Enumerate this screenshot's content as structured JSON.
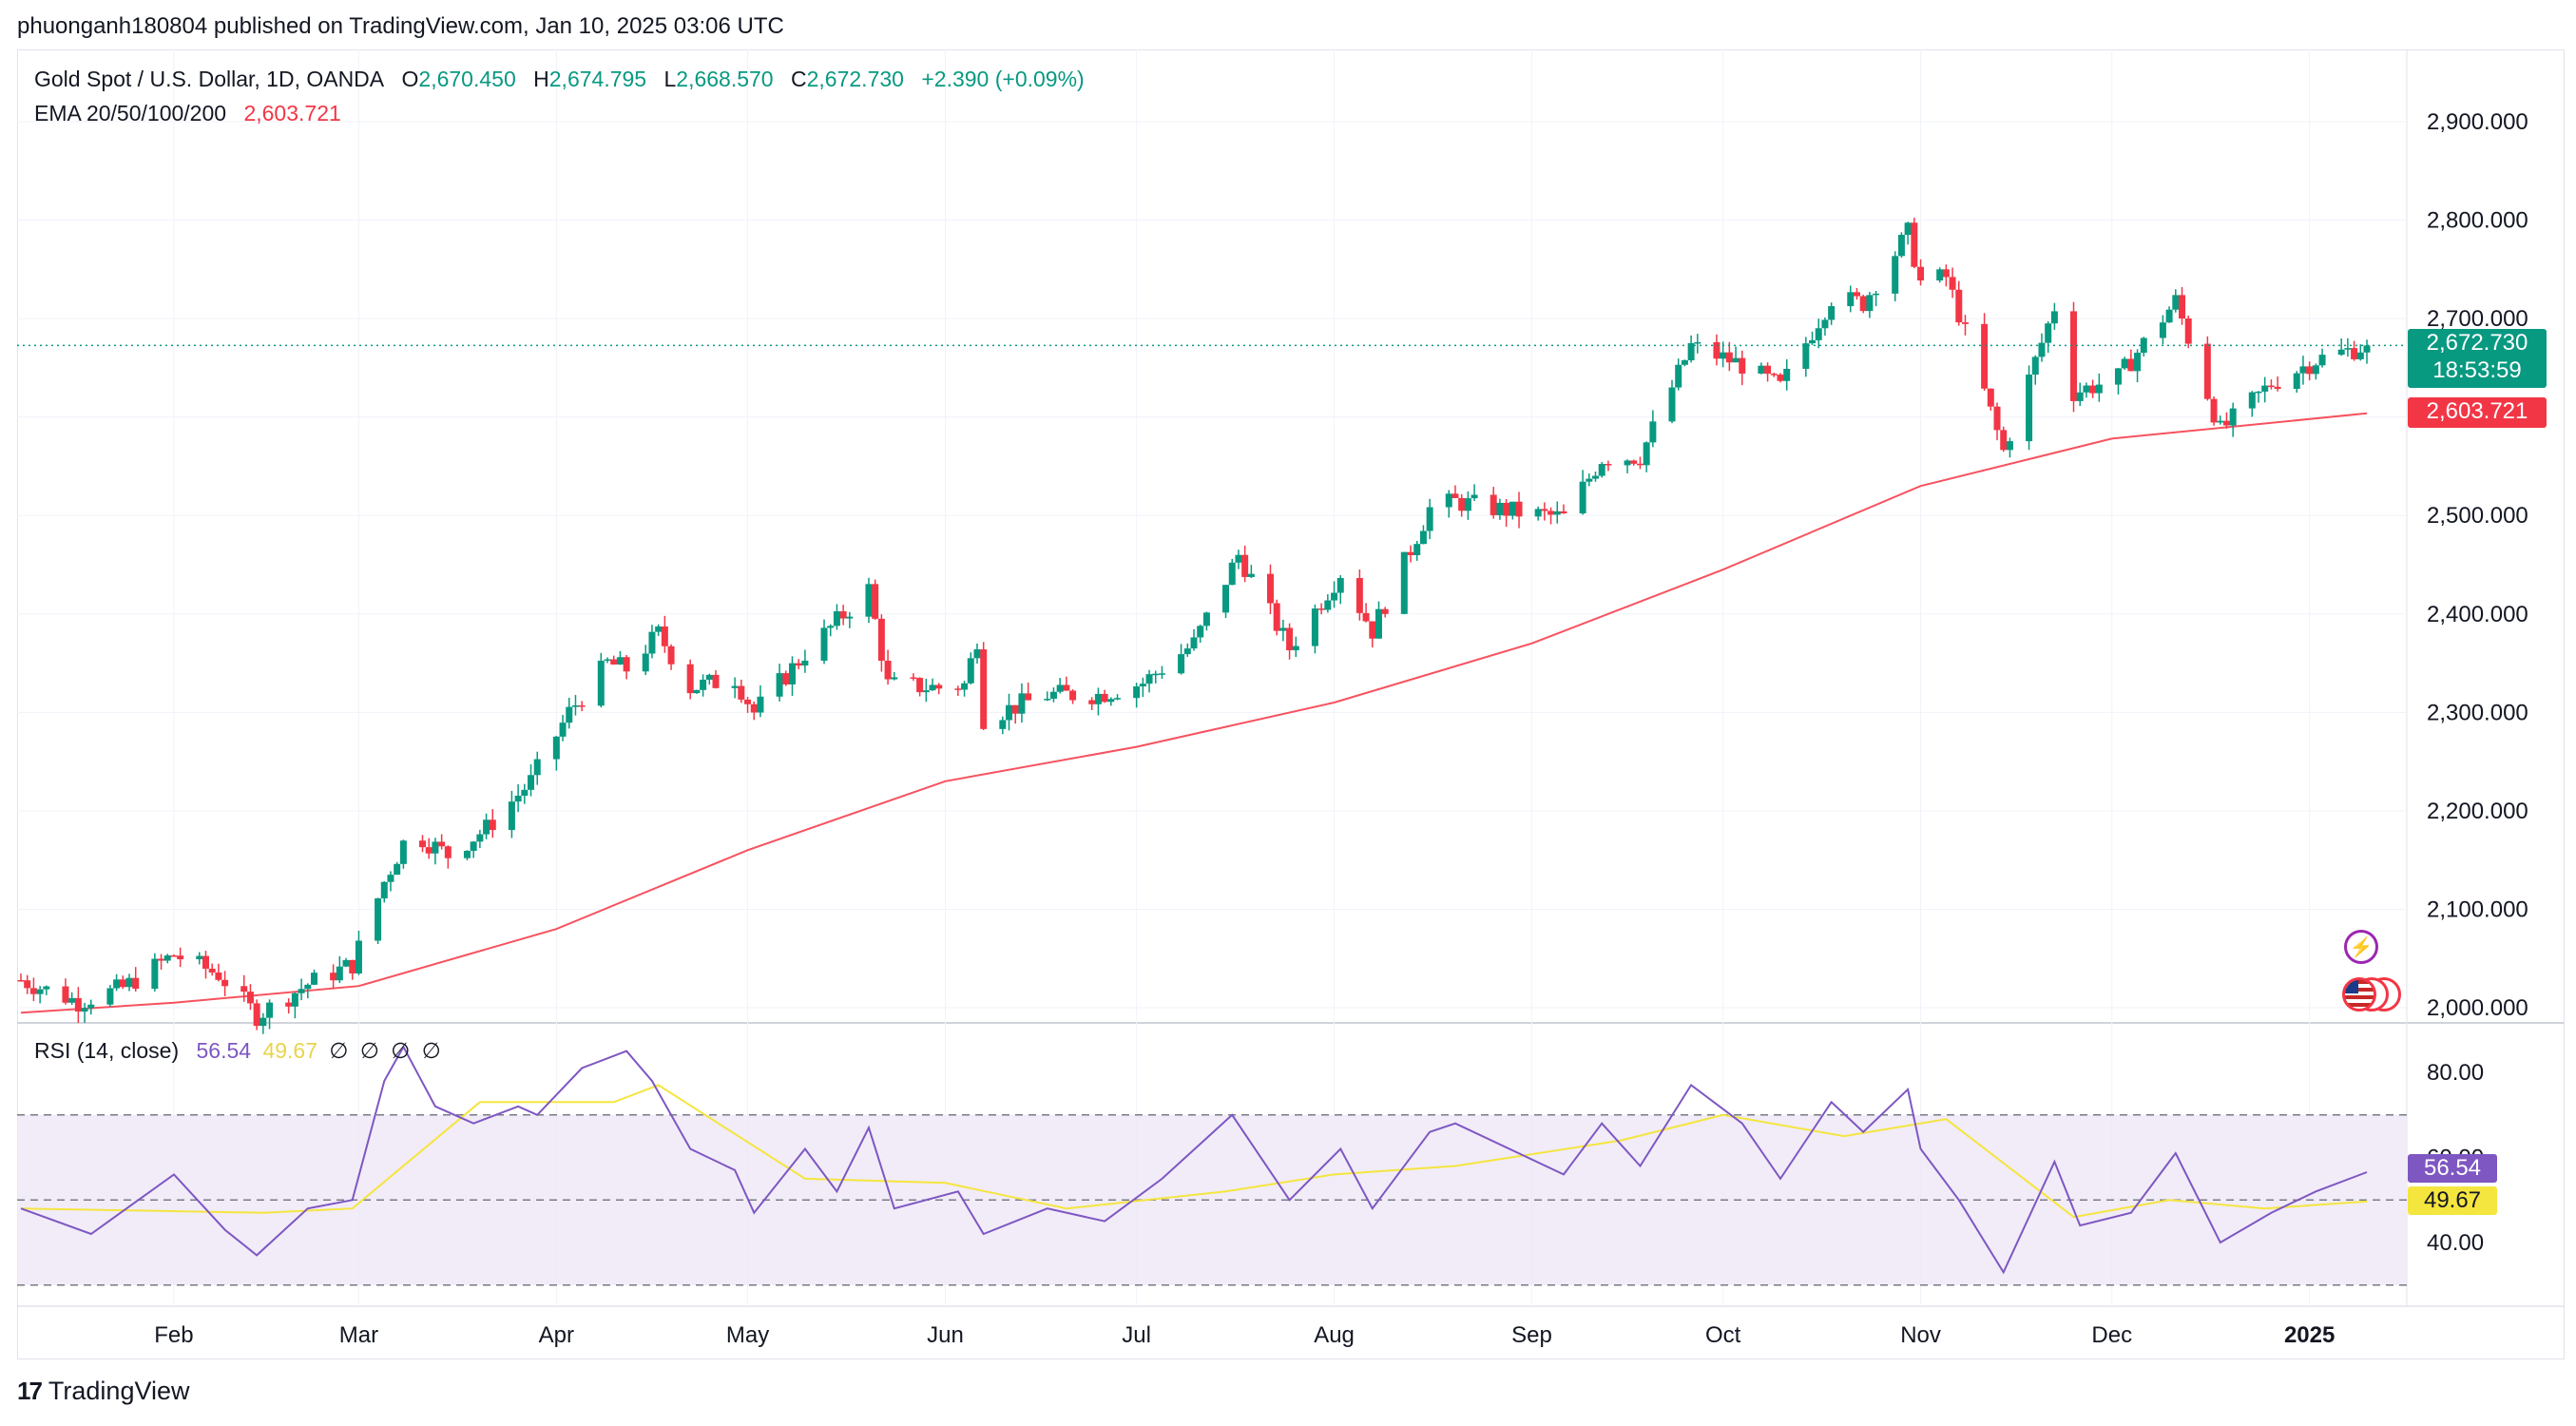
{
  "publisher": {
    "text": "phuonganh180804 published on TradingView.com, Jan 10, 2025 03:06 UTC"
  },
  "legend": {
    "symbol": "Gold Spot / U.S. Dollar, 1D, OANDA",
    "o_label": "O",
    "o": "2,670.450",
    "h_label": "H",
    "h": "2,674.795",
    "l_label": "L",
    "l": "2,668.570",
    "c_label": "C",
    "c": "2,672.730",
    "change": "+2.390 (+0.09%)",
    "ema_label": "EMA 20/50/100/200",
    "ema_value": "2,603.721",
    "rsi_label": "RSI (14, close)",
    "rsi_value": "56.54",
    "rsi_ma_value": "49.67",
    "rsi_na": [
      "∅",
      "∅",
      "∅",
      "∅"
    ]
  },
  "badges": {
    "price": "2,672.730",
    "countdown": "18:53:59",
    "ema": "2,603.721",
    "rsi": "56.54",
    "rsi_ma": "49.67"
  },
  "colors": {
    "up": "#089981",
    "down": "#f23645",
    "ema": "#f7525f",
    "rsi": "#7e57c2",
    "rsi_ma": "#f5e53f",
    "rsi_band": "#ede7f6"
  },
  "branding": {
    "name": "TradingView",
    "logo_icon": "tradingview-logo-icon"
  },
  "icons": [
    "lightning-event-icon",
    "us-flag-events-icon"
  ],
  "chart_data": [
    {
      "type": "candlestick",
      "title": "Gold Spot / U.S. Dollar, 1D, OANDA",
      "x_range": [
        "2024-01-08",
        "2025-01-10"
      ],
      "ylim": [
        1990,
        2950
      ],
      "y_ticks": [
        "2,000.000",
        "2,100.000",
        "2,200.000",
        "2,300.000",
        "2,400.000",
        "2,500.000",
        "2,600.000",
        "2,700.000",
        "2,800.000",
        "2,900.000"
      ],
      "x_ticks": [
        "Feb",
        "Mar",
        "Apr",
        "May",
        "Jun",
        "Jul",
        "Aug",
        "Sep",
        "Oct",
        "Nov",
        "Dec",
        "2025"
      ],
      "current_price": 2672.73,
      "close_series": [
        {
          "date": "2024-01-08",
          "value": 2028
        },
        {
          "date": "2024-01-17",
          "value": 2006
        },
        {
          "date": "2024-01-24",
          "value": 2020
        },
        {
          "date": "2024-02-01",
          "value": 2054
        },
        {
          "date": "2024-02-08",
          "value": 2034
        },
        {
          "date": "2024-02-14",
          "value": 1992
        },
        {
          "date": "2024-02-22",
          "value": 2024
        },
        {
          "date": "2024-02-29",
          "value": 2044
        },
        {
          "date": "2024-03-05",
          "value": 2128
        },
        {
          "date": "2024-03-09",
          "value": 2180
        },
        {
          "date": "2024-03-15",
          "value": 2155
        },
        {
          "date": "2024-03-21",
          "value": 2182
        },
        {
          "date": "2024-03-28",
          "value": 2230
        },
        {
          "date": "2024-04-03",
          "value": 2300
        },
        {
          "date": "2024-04-09",
          "value": 2350
        },
        {
          "date": "2024-04-12",
          "value": 2344
        },
        {
          "date": "2024-04-17",
          "value": 2380
        },
        {
          "date": "2024-04-22",
          "value": 2325
        },
        {
          "date": "2024-04-29",
          "value": 2335
        },
        {
          "date": "2024-05-02",
          "value": 2300
        },
        {
          "date": "2024-05-10",
          "value": 2360
        },
        {
          "date": "2024-05-20",
          "value": 2425
        },
        {
          "date": "2024-05-23",
          "value": 2328
        },
        {
          "date": "2024-05-31",
          "value": 2325
        },
        {
          "date": "2024-06-04",
          "value": 2328
        },
        {
          "date": "2024-06-06",
          "value": 2375
        },
        {
          "date": "2024-06-07",
          "value": 2294
        },
        {
          "date": "2024-06-17",
          "value": 2318
        },
        {
          "date": "2024-06-25",
          "value": 2318
        },
        {
          "date": "2024-07-02",
          "value": 2330
        },
        {
          "date": "2024-07-10",
          "value": 2370
        },
        {
          "date": "2024-07-17",
          "value": 2460
        },
        {
          "date": "2024-07-25",
          "value": 2365
        },
        {
          "date": "2024-08-02",
          "value": 2442
        },
        {
          "date": "2024-08-07",
          "value": 2383
        },
        {
          "date": "2024-08-16",
          "value": 2507
        },
        {
          "date": "2024-08-20",
          "value": 2514
        },
        {
          "date": "2024-08-30",
          "value": 2503
        },
        {
          "date": "2024-09-06",
          "value": 2498
        },
        {
          "date": "2024-09-12",
          "value": 2558
        },
        {
          "date": "2024-09-18",
          "value": 2560
        },
        {
          "date": "2024-09-26",
          "value": 2672
        },
        {
          "date": "2024-10-04",
          "value": 2653
        },
        {
          "date": "2024-10-10",
          "value": 2630
        },
        {
          "date": "2024-10-18",
          "value": 2721
        },
        {
          "date": "2024-10-23",
          "value": 2716
        },
        {
          "date": "2024-10-30",
          "value": 2787
        },
        {
          "date": "2024-11-01",
          "value": 2737
        },
        {
          "date": "2024-11-05",
          "value": 2742
        },
        {
          "date": "2024-11-07",
          "value": 2705
        },
        {
          "date": "2024-11-14",
          "value": 2565
        },
        {
          "date": "2024-11-22",
          "value": 2712
        },
        {
          "date": "2024-11-25",
          "value": 2625
        },
        {
          "date": "2024-12-02",
          "value": 2640
        },
        {
          "date": "2024-12-11",
          "value": 2718
        },
        {
          "date": "2024-12-18",
          "value": 2586
        },
        {
          "date": "2024-12-26",
          "value": 2634
        },
        {
          "date": "2025-01-02",
          "value": 2658
        },
        {
          "date": "2025-01-10",
          "value": 2672.73
        }
      ]
    },
    {
      "type": "line",
      "series": [
        {
          "name": "EMA 20/50/100/200",
          "last_value": 2603.721
        }
      ],
      "points": [
        {
          "date": "2024-01-08",
          "value": 1995
        },
        {
          "date": "2024-02-01",
          "value": 2005
        },
        {
          "date": "2024-03-01",
          "value": 2022
        },
        {
          "date": "2024-04-01",
          "value": 2080
        },
        {
          "date": "2024-05-01",
          "value": 2160
        },
        {
          "date": "2024-06-01",
          "value": 2230
        },
        {
          "date": "2024-07-01",
          "value": 2265
        },
        {
          "date": "2024-08-01",
          "value": 2310
        },
        {
          "date": "2024-09-01",
          "value": 2370
        },
        {
          "date": "2024-10-01",
          "value": 2445
        },
        {
          "date": "2024-11-01",
          "value": 2530
        },
        {
          "date": "2024-12-01",
          "value": 2578
        },
        {
          "date": "2025-01-10",
          "value": 2603.721
        }
      ]
    },
    {
      "type": "line",
      "title": "RSI (14, close)",
      "ylim": [
        20,
        95
      ],
      "y_ticks": [
        "40.00",
        "60.00",
        "80.00"
      ],
      "bands": {
        "upper": 70,
        "middle": 50,
        "lower": 30
      },
      "series": [
        {
          "name": "RSI",
          "last_value": 56.54,
          "points": [
            {
              "date": "2024-01-08",
              "value": 48
            },
            {
              "date": "2024-01-19",
              "value": 42
            },
            {
              "date": "2024-02-01",
              "value": 56
            },
            {
              "date": "2024-02-09",
              "value": 43
            },
            {
              "date": "2024-02-14",
              "value": 37
            },
            {
              "date": "2024-02-22",
              "value": 48
            },
            {
              "date": "2024-02-29",
              "value": 50
            },
            {
              "date": "2024-03-05",
              "value": 78
            },
            {
              "date": "2024-03-08",
              "value": 86
            },
            {
              "date": "2024-03-13",
              "value": 72
            },
            {
              "date": "2024-03-19",
              "value": 68
            },
            {
              "date": "2024-03-26",
              "value": 72
            },
            {
              "date": "2024-03-29",
              "value": 70
            },
            {
              "date": "2024-04-05",
              "value": 81
            },
            {
              "date": "2024-04-12",
              "value": 85
            },
            {
              "date": "2024-04-16",
              "value": 78
            },
            {
              "date": "2024-04-22",
              "value": 62
            },
            {
              "date": "2024-04-29",
              "value": 57
            },
            {
              "date": "2024-05-02",
              "value": 47
            },
            {
              "date": "2024-05-10",
              "value": 62
            },
            {
              "date": "2024-05-15",
              "value": 52
            },
            {
              "date": "2024-05-20",
              "value": 67
            },
            {
              "date": "2024-05-24",
              "value": 48
            },
            {
              "date": "2024-06-03",
              "value": 52
            },
            {
              "date": "2024-06-07",
              "value": 42
            },
            {
              "date": "2024-06-17",
              "value": 48
            },
            {
              "date": "2024-06-26",
              "value": 45
            },
            {
              "date": "2024-07-05",
              "value": 55
            },
            {
              "date": "2024-07-16",
              "value": 70
            },
            {
              "date": "2024-07-25",
              "value": 50
            },
            {
              "date": "2024-08-02",
              "value": 62
            },
            {
              "date": "2024-08-07",
              "value": 48
            },
            {
              "date": "2024-08-16",
              "value": 66
            },
            {
              "date": "2024-08-20",
              "value": 68
            },
            {
              "date": "2024-09-06",
              "value": 56
            },
            {
              "date": "2024-09-12",
              "value": 68
            },
            {
              "date": "2024-09-18",
              "value": 58
            },
            {
              "date": "2024-09-26",
              "value": 77
            },
            {
              "date": "2024-10-04",
              "value": 68
            },
            {
              "date": "2024-10-10",
              "value": 55
            },
            {
              "date": "2024-10-18",
              "value": 73
            },
            {
              "date": "2024-10-23",
              "value": 66
            },
            {
              "date": "2024-10-30",
              "value": 76
            },
            {
              "date": "2024-11-01",
              "value": 62
            },
            {
              "date": "2024-11-07",
              "value": 50
            },
            {
              "date": "2024-11-14",
              "value": 33
            },
            {
              "date": "2024-11-22",
              "value": 59
            },
            {
              "date": "2024-11-26",
              "value": 44
            },
            {
              "date": "2024-12-04",
              "value": 47
            },
            {
              "date": "2024-12-11",
              "value": 61
            },
            {
              "date": "2024-12-18",
              "value": 40
            },
            {
              "date": "2024-12-26",
              "value": 47
            },
            {
              "date": "2025-01-02",
              "value": 52
            },
            {
              "date": "2025-01-10",
              "value": 56.54
            }
          ]
        },
        {
          "name": "RSI-based MA",
          "last_value": 49.67,
          "points": [
            {
              "date": "2024-01-08",
              "value": 48
            },
            {
              "date": "2024-02-15",
              "value": 47
            },
            {
              "date": "2024-02-29",
              "value": 48
            },
            {
              "date": "2024-03-20",
              "value": 73
            },
            {
              "date": "2024-04-10",
              "value": 73
            },
            {
              "date": "2024-04-17",
              "value": 77
            },
            {
              "date": "2024-05-10",
              "value": 55
            },
            {
              "date": "2024-06-01",
              "value": 54
            },
            {
              "date": "2024-06-20",
              "value": 48
            },
            {
              "date": "2024-07-15",
              "value": 52
            },
            {
              "date": "2024-08-01",
              "value": 56
            },
            {
              "date": "2024-08-20",
              "value": 58
            },
            {
              "date": "2024-09-15",
              "value": 64
            },
            {
              "date": "2024-10-01",
              "value": 70
            },
            {
              "date": "2024-10-20",
              "value": 65
            },
            {
              "date": "2024-11-05",
              "value": 69
            },
            {
              "date": "2024-11-25",
              "value": 46
            },
            {
              "date": "2024-12-10",
              "value": 50
            },
            {
              "date": "2024-12-25",
              "value": 48
            },
            {
              "date": "2025-01-10",
              "value": 49.67
            }
          ]
        }
      ]
    }
  ]
}
